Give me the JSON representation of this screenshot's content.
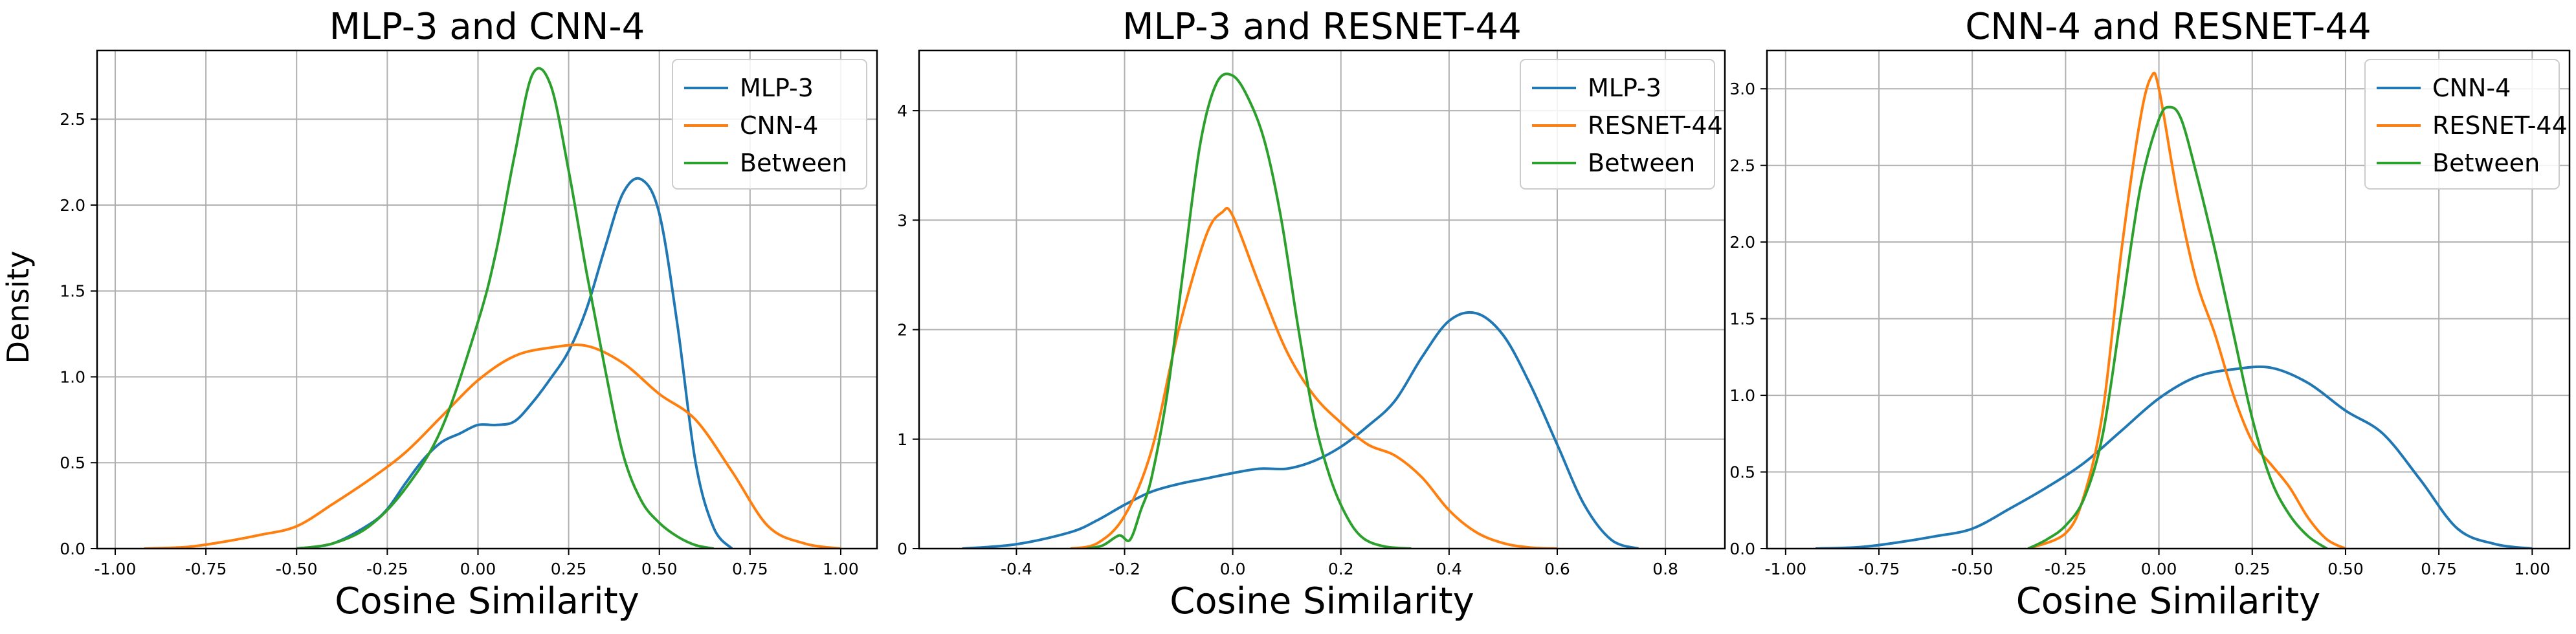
{
  "figure": {
    "ylabel": "Density",
    "xlabel": "Cosine Similarity"
  },
  "colors": {
    "blue": "#1f77b4",
    "orange": "#ff7f0e",
    "green": "#2ca02c",
    "grid": "#b0b0b0"
  },
  "chart_data": [
    {
      "type": "line",
      "title": "MLP-3 and CNN-4",
      "xlabel": "Cosine Similarity",
      "ylabel": "Density",
      "xlim": [
        -1.05,
        1.1
      ],
      "ylim": [
        0,
        2.9
      ],
      "xticks": [
        -1.0,
        -0.75,
        -0.5,
        -0.25,
        0.0,
        0.25,
        0.5,
        0.75,
        1.0
      ],
      "xtick_labels": [
        "-1.00",
        "-0.75",
        "-0.50",
        "-0.25",
        "0.00",
        "0.25",
        "0.50",
        "0.75",
        "1.00"
      ],
      "yticks": [
        0,
        0.5,
        1.0,
        1.5,
        2.0,
        2.5
      ],
      "ytick_labels": [
        "0.0",
        "0.5",
        "1.0",
        "1.5",
        "2.0",
        "2.5"
      ],
      "grid": true,
      "legend_position": "top-right",
      "series": [
        {
          "name": "MLP-3",
          "color": "#1f77b4",
          "x": [
            -0.5,
            -0.4,
            -0.3,
            -0.25,
            -0.2,
            -0.15,
            -0.1,
            -0.05,
            0.0,
            0.05,
            0.1,
            0.15,
            0.2,
            0.25,
            0.3,
            0.35,
            0.4,
            0.45,
            0.5,
            0.55,
            0.6,
            0.65,
            0.7
          ],
          "y": [
            0.0,
            0.03,
            0.14,
            0.23,
            0.38,
            0.52,
            0.62,
            0.67,
            0.72,
            0.72,
            0.74,
            0.85,
            0.99,
            1.15,
            1.4,
            1.75,
            2.07,
            2.15,
            1.95,
            1.3,
            0.5,
            0.12,
            0.0
          ]
        },
        {
          "name": "CNN-4",
          "color": "#ff7f0e",
          "x": [
            -0.92,
            -0.8,
            -0.7,
            -0.6,
            -0.5,
            -0.4,
            -0.3,
            -0.2,
            -0.1,
            0.0,
            0.1,
            0.2,
            0.3,
            0.4,
            0.5,
            0.6,
            0.7,
            0.8,
            0.9,
            1.0
          ],
          "y": [
            0.0,
            0.01,
            0.04,
            0.08,
            0.13,
            0.26,
            0.4,
            0.56,
            0.77,
            0.98,
            1.12,
            1.17,
            1.18,
            1.08,
            0.9,
            0.75,
            0.45,
            0.13,
            0.03,
            0.0
          ]
        },
        {
          "name": "Between",
          "color": "#2ca02c",
          "x": [
            -0.5,
            -0.4,
            -0.3,
            -0.2,
            -0.1,
            0.0,
            0.05,
            0.1,
            0.15,
            0.2,
            0.25,
            0.3,
            0.35,
            0.4,
            0.45,
            0.5,
            0.55,
            0.6,
            0.65
          ],
          "y": [
            0.0,
            0.03,
            0.13,
            0.35,
            0.7,
            1.32,
            1.73,
            2.28,
            2.76,
            2.7,
            2.2,
            1.6,
            1.05,
            0.55,
            0.28,
            0.15,
            0.07,
            0.02,
            0.0
          ]
        }
      ]
    },
    {
      "type": "line",
      "title": "MLP-3 and RESNET-44",
      "xlabel": "Cosine Similarity",
      "ylabel": "",
      "xlim": [
        -0.58,
        0.91
      ],
      "ylim": [
        0,
        4.55
      ],
      "xticks": [
        -0.4,
        -0.2,
        0.0,
        0.2,
        0.4,
        0.6,
        0.8
      ],
      "xtick_labels": [
        "-0.4",
        "-0.2",
        "0.0",
        "0.2",
        "0.4",
        "0.6",
        "0.8"
      ],
      "yticks": [
        0,
        1,
        2,
        3,
        4
      ],
      "ytick_labels": [
        "0",
        "1",
        "2",
        "3",
        "4"
      ],
      "grid": true,
      "legend_position": "top-right",
      "series": [
        {
          "name": "MLP-3",
          "color": "#1f77b4",
          "x": [
            -0.5,
            -0.4,
            -0.3,
            -0.25,
            -0.2,
            -0.15,
            -0.1,
            -0.05,
            0.0,
            0.05,
            0.1,
            0.15,
            0.2,
            0.25,
            0.3,
            0.35,
            0.4,
            0.45,
            0.5,
            0.55,
            0.6,
            0.65,
            0.7,
            0.75
          ],
          "y": [
            0.0,
            0.04,
            0.15,
            0.26,
            0.4,
            0.52,
            0.59,
            0.64,
            0.69,
            0.73,
            0.73,
            0.8,
            0.93,
            1.12,
            1.35,
            1.75,
            2.08,
            2.15,
            1.95,
            1.5,
            0.95,
            0.4,
            0.08,
            0.0
          ]
        },
        {
          "name": "RESNET-44",
          "color": "#ff7f0e",
          "x": [
            -0.3,
            -0.25,
            -0.2,
            -0.15,
            -0.1,
            -0.05,
            -0.02,
            0.0,
            0.05,
            0.1,
            0.15,
            0.2,
            0.25,
            0.3,
            0.35,
            0.4,
            0.45,
            0.5,
            0.55,
            0.6
          ],
          "y": [
            0.0,
            0.05,
            0.3,
            0.9,
            2.0,
            2.85,
            3.07,
            3.04,
            2.4,
            1.8,
            1.4,
            1.15,
            0.95,
            0.85,
            0.65,
            0.35,
            0.15,
            0.05,
            0.01,
            0.0
          ]
        },
        {
          "name": "Between",
          "color": "#2ca02c",
          "x": [
            -0.27,
            -0.24,
            -0.21,
            -0.19,
            -0.17,
            -0.15,
            -0.12,
            -0.09,
            -0.06,
            -0.03,
            0.0,
            0.03,
            0.06,
            0.09,
            0.12,
            0.15,
            0.18,
            0.21,
            0.24,
            0.28,
            0.33
          ],
          "y": [
            0.0,
            0.03,
            0.12,
            0.08,
            0.35,
            0.65,
            1.45,
            2.6,
            3.7,
            4.25,
            4.32,
            4.1,
            3.7,
            3.0,
            2.05,
            1.2,
            0.65,
            0.3,
            0.1,
            0.02,
            0.0
          ]
        }
      ]
    },
    {
      "type": "line",
      "title": "CNN-4 and RESNET-44",
      "xlabel": "Cosine Similarity",
      "ylabel": "",
      "xlim": [
        -1.05,
        1.1
      ],
      "ylim": [
        0,
        3.25
      ],
      "xticks": [
        -1.0,
        -0.75,
        -0.5,
        -0.25,
        0.0,
        0.25,
        0.5,
        0.75,
        1.0
      ],
      "xtick_labels": [
        "-1.00",
        "-0.75",
        "-0.50",
        "-0.25",
        "0.00",
        "0.25",
        "0.50",
        "0.75",
        "1.00"
      ],
      "yticks": [
        0,
        0.5,
        1.0,
        1.5,
        2.0,
        2.5,
        3.0
      ],
      "ytick_labels": [
        "0.0",
        "0.5",
        "1.0",
        "1.5",
        "2.0",
        "2.5",
        "3.0"
      ],
      "grid": true,
      "legend_position": "top-right",
      "series": [
        {
          "name": "CNN-4",
          "color": "#1f77b4",
          "x": [
            -0.92,
            -0.8,
            -0.7,
            -0.6,
            -0.5,
            -0.4,
            -0.3,
            -0.2,
            -0.1,
            0.0,
            0.1,
            0.2,
            0.3,
            0.4,
            0.5,
            0.6,
            0.7,
            0.8,
            0.9,
            1.0
          ],
          "y": [
            0.0,
            0.01,
            0.04,
            0.08,
            0.13,
            0.26,
            0.4,
            0.56,
            0.77,
            0.98,
            1.12,
            1.17,
            1.18,
            1.08,
            0.9,
            0.75,
            0.45,
            0.13,
            0.03,
            0.0
          ]
        },
        {
          "name": "RESNET-44",
          "color": "#ff7f0e",
          "x": [
            -0.35,
            -0.25,
            -0.2,
            -0.15,
            -0.1,
            -0.05,
            -0.02,
            0.0,
            0.05,
            0.1,
            0.15,
            0.2,
            0.25,
            0.3,
            0.35,
            0.4,
            0.45,
            0.5
          ],
          "y": [
            0.0,
            0.1,
            0.35,
            0.9,
            1.95,
            2.8,
            3.08,
            3.0,
            2.3,
            1.75,
            1.4,
            1.0,
            0.7,
            0.55,
            0.4,
            0.2,
            0.06,
            0.0
          ]
        },
        {
          "name": "Between",
          "color": "#2ca02c",
          "x": [
            -0.35,
            -0.3,
            -0.25,
            -0.2,
            -0.15,
            -0.1,
            -0.05,
            0.0,
            0.03,
            0.06,
            0.1,
            0.15,
            0.2,
            0.25,
            0.3,
            0.35,
            0.4,
            0.45
          ],
          "y": [
            0.0,
            0.06,
            0.15,
            0.33,
            0.75,
            1.55,
            2.35,
            2.8,
            2.88,
            2.8,
            2.45,
            1.95,
            1.4,
            0.85,
            0.45,
            0.22,
            0.08,
            0.0
          ]
        }
      ]
    }
  ]
}
